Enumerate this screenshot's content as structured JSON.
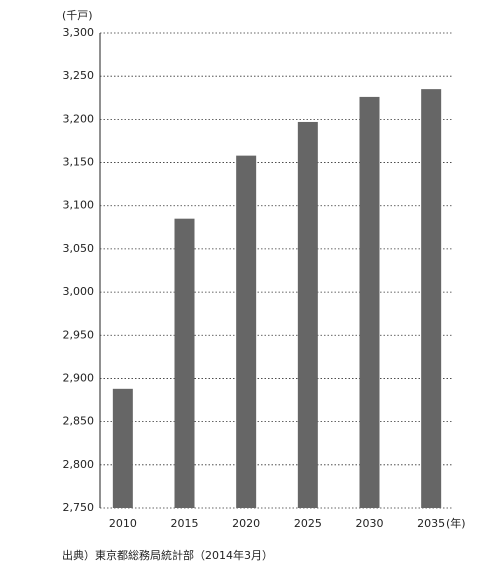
{
  "chart_data": {
    "type": "bar",
    "y_unit": "(千戸)",
    "x_unit": "(年)",
    "source": "出典）東京都総務局統計部（2014年3月）",
    "categories": [
      "2010",
      "2015",
      "2020",
      "2025",
      "2030",
      "2035"
    ],
    "values": [
      2888,
      3085,
      3158,
      3197,
      3226,
      3235
    ],
    "color": "#666666",
    "ylim": [
      2750,
      3300
    ],
    "yticks": [
      {
        "value": 2750,
        "label": "2,750"
      },
      {
        "value": 2800,
        "label": "2,800"
      },
      {
        "value": 2850,
        "label": "2,850"
      },
      {
        "value": 2900,
        "label": "2,900"
      },
      {
        "value": 2950,
        "label": "2,950"
      },
      {
        "value": 3000,
        "label": "3,000"
      },
      {
        "value": 3050,
        "label": "3,050"
      },
      {
        "value": 3100,
        "label": "3,100"
      },
      {
        "value": 3150,
        "label": "3,150"
      },
      {
        "value": 3200,
        "label": "3,200"
      },
      {
        "value": 3250,
        "label": "3,250"
      },
      {
        "value": 3300,
        "label": "3,300"
      }
    ],
    "grid": true
  }
}
